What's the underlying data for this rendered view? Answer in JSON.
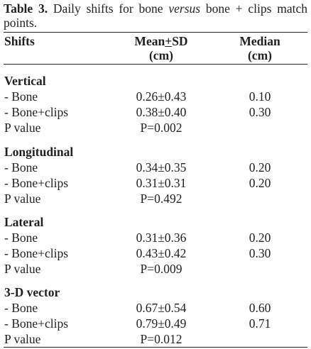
{
  "caption": {
    "label": "Table 3.",
    "text_before": " Daily shifts for bone ",
    "text_italic": "versus",
    "text_after": " bone + clips match points."
  },
  "header": {
    "col1": "Shifts",
    "col2_line1_pre": "Mean",
    "col2_line1_sym": "+",
    "col2_line1_post": "SD",
    "col2_line2": "(cm)",
    "col3_line1": "Median",
    "col3_line2": "(cm)"
  },
  "sections": [
    {
      "title": "Vertical",
      "rows": [
        {
          "label": "- Bone",
          "mean": "0.26±0.43",
          "median": "0.10"
        },
        {
          "label": "- Bone+clips",
          "mean": "0.38±0.40",
          "median": "0.30"
        },
        {
          "label": "P value",
          "mean": "P=0.002",
          "median": ""
        }
      ]
    },
    {
      "title": "Longitudinal",
      "rows": [
        {
          "label": "- Bone",
          "mean": "0.34±0.35",
          "median": "0.20"
        },
        {
          "label": "- Bone+clips",
          "mean": "0.31±0.31",
          "median": "0.20"
        },
        {
          "label": "P value",
          "mean": "P=0.492",
          "median": ""
        }
      ]
    },
    {
      "title": "Lateral",
      "rows": [
        {
          "label": "- Bone",
          "mean": "0.31±0.36",
          "median": "0.20"
        },
        {
          "label": "- Bone+clips",
          "mean": "0.43±0.42",
          "median": "0.30"
        },
        {
          "label": "P value",
          "mean": "P=0.009",
          "median": ""
        }
      ]
    },
    {
      "title": "3-D vector",
      "rows": [
        {
          "label": "- Bone",
          "mean": "0.67±0.54",
          "median": "0.60"
        },
        {
          "label": "- Bone+clips",
          "mean": "0.79±0.49",
          "median": "0.71"
        },
        {
          "label": "P value",
          "mean": "P=0.012",
          "median": ""
        }
      ]
    }
  ]
}
